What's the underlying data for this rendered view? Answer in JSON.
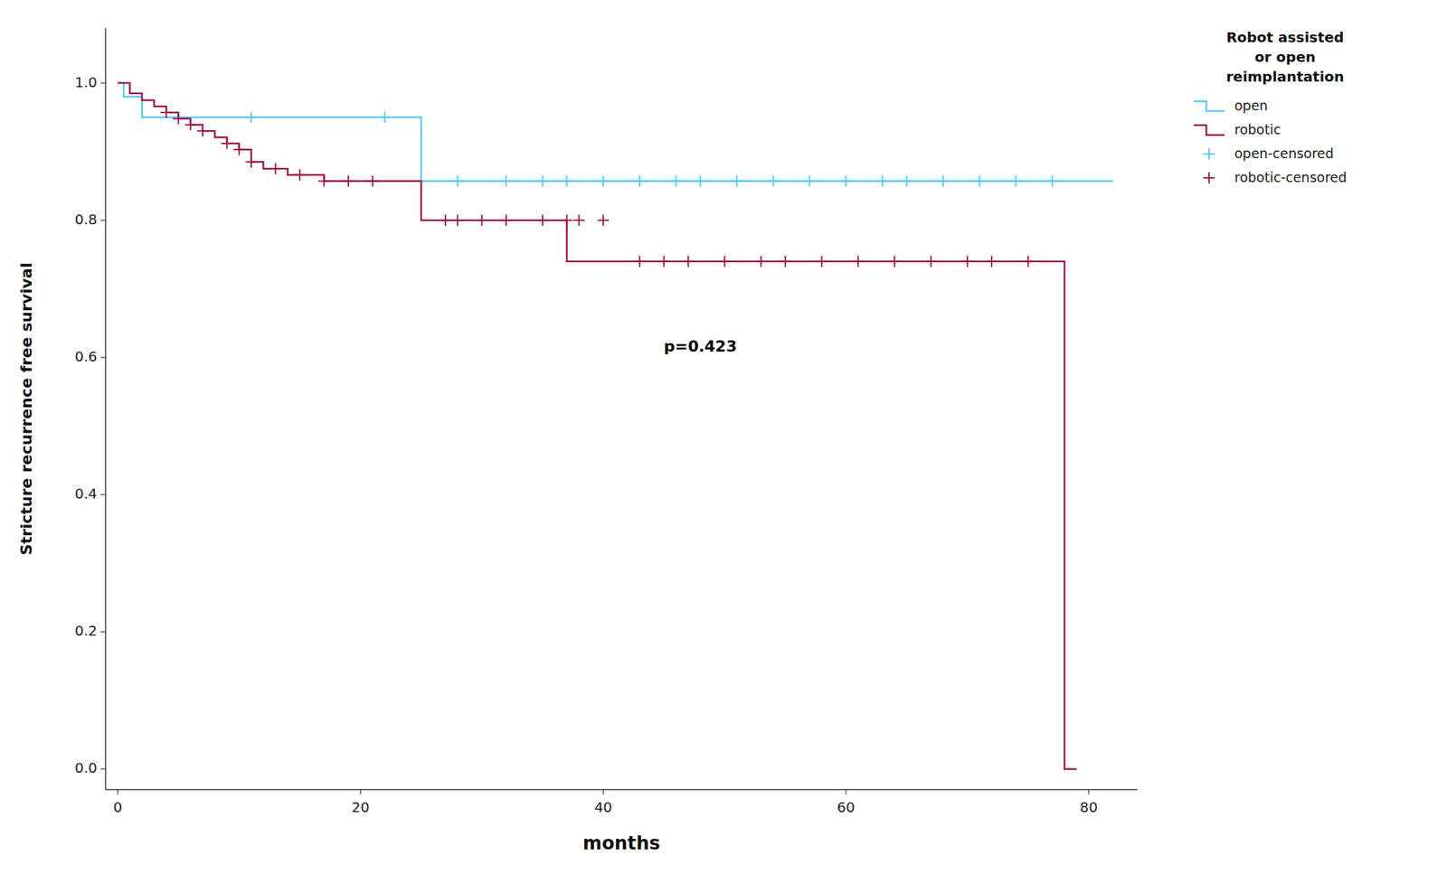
{
  "chart_data": {
    "type": "line",
    "xlabel": "months",
    "ylabel": "Stricture recurrence free survival",
    "xlim": [
      -1,
      84
    ],
    "ylim": [
      -0.03,
      1.08
    ],
    "xticks": [
      0,
      20,
      40,
      60,
      80
    ],
    "yticks": [
      {
        "value": 0.0,
        "label": "0.0"
      },
      0.2,
      0.4,
      0.6,
      0.8,
      {
        "value": 1.0,
        "label": "1.0"
      }
    ],
    "grid": false,
    "legend": "upper right",
    "legend_title": "Robot assisted\nor open\nreimplantation",
    "annotations": [
      {
        "text": "p=0.423",
        "x": 48,
        "y": 0.615
      }
    ],
    "series": [
      {
        "name": "open",
        "type": "line",
        "line_style": "step",
        "color": "#5bc8f5",
        "x": [
          0,
          0.5,
          0.5,
          2,
          2,
          25,
          25,
          82
        ],
        "values": [
          1.0,
          1.0,
          0.98,
          0.98,
          0.95,
          0.95,
          0.857,
          0.857
        ]
      },
      {
        "name": "robotic",
        "type": "line",
        "line_style": "step",
        "color": "#9b1b4e",
        "x": [
          0,
          1,
          1,
          2,
          2,
          3,
          3,
          4,
          4,
          5,
          5,
          6,
          6,
          7,
          7,
          8,
          8,
          9,
          9,
          10,
          10,
          11,
          11,
          12,
          12,
          14,
          14,
          17,
          17,
          25,
          25,
          30,
          30,
          37,
          37,
          42,
          42,
          78,
          78,
          79
        ],
        "values": [
          1.0,
          1.0,
          0.985,
          0.985,
          0.975,
          0.975,
          0.966,
          0.966,
          0.957,
          0.957,
          0.948,
          0.948,
          0.939,
          0.939,
          0.93,
          0.93,
          0.921,
          0.921,
          0.912,
          0.912,
          0.903,
          0.903,
          0.885,
          0.885,
          0.875,
          0.875,
          0.866,
          0.866,
          0.857,
          0.857,
          0.8,
          0.8,
          0.8,
          0.8,
          0.74,
          0.74,
          0.74,
          0.74,
          0.0,
          0.0
        ]
      },
      {
        "name": "open-censored",
        "type": "scatter",
        "marker": "+",
        "color": "#5bc8f5",
        "x": [
          11,
          22,
          28,
          32,
          35,
          37,
          40,
          43,
          46,
          48,
          51,
          54,
          57,
          60,
          63,
          65,
          68,
          71,
          74,
          77
        ],
        "values": [
          0.95,
          0.95,
          0.857,
          0.857,
          0.857,
          0.857,
          0.857,
          0.857,
          0.857,
          0.857,
          0.857,
          0.857,
          0.857,
          0.857,
          0.857,
          0.857,
          0.857,
          0.857,
          0.857,
          0.857
        ]
      },
      {
        "name": "robotic-censored",
        "type": "scatter",
        "marker": "+",
        "color": "#9b1b4e",
        "x": [
          4,
          5,
          6,
          7,
          9,
          10,
          11,
          13,
          15,
          17,
          19,
          21,
          27,
          28,
          30,
          32,
          35,
          37,
          38,
          40,
          43,
          45,
          47,
          50,
          53,
          55,
          58,
          61,
          64,
          67,
          70,
          72,
          75
        ],
        "values": [
          0.957,
          0.948,
          0.939,
          0.93,
          0.912,
          0.903,
          0.885,
          0.875,
          0.866,
          0.857,
          0.857,
          0.857,
          0.8,
          0.8,
          0.8,
          0.8,
          0.8,
          0.8,
          0.8,
          0.8,
          0.74,
          0.74,
          0.74,
          0.74,
          0.74,
          0.74,
          0.74,
          0.74,
          0.74,
          0.74,
          0.74,
          0.74,
          0.74
        ]
      }
    ]
  }
}
